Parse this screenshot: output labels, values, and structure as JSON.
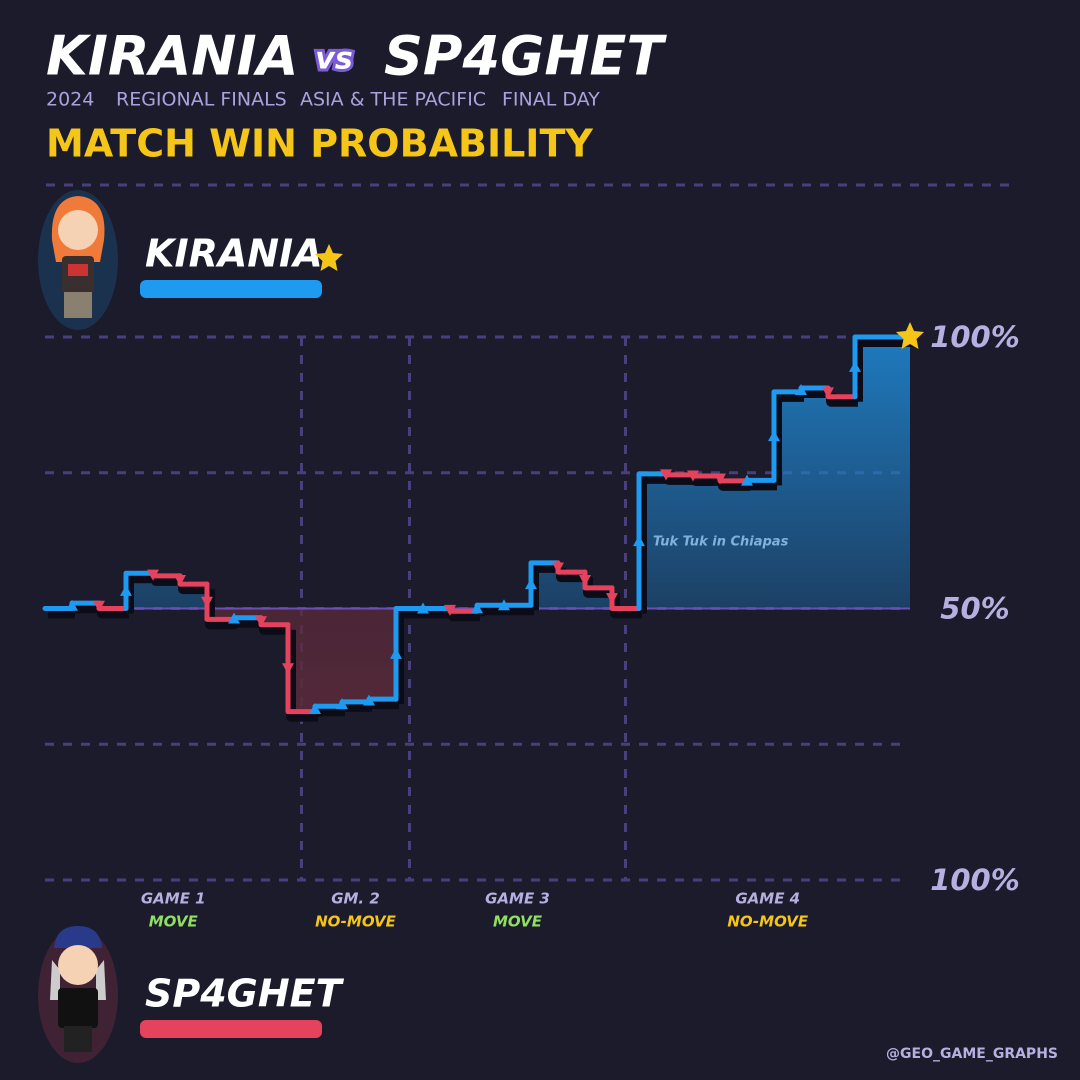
{
  "header": {
    "team_a": "KIRANIA",
    "vs": "vs",
    "team_b": "SP4GHET",
    "subtitle": [
      "2024",
      "REGIONAL FINALS",
      "ASIA & THE PACIFIC",
      "FINAL DAY"
    ]
  },
  "chart_data": {
    "type": "line",
    "title": "MATCH WIN PROBABILITY",
    "players": [
      {
        "name": "KIRANIA",
        "color": "#1e9af0"
      },
      {
        "name": "SP4GHET",
        "color": "#e5435d"
      }
    ],
    "ylim": [
      0,
      100
    ],
    "yticks": [
      {
        "value": 0,
        "label": "100%"
      },
      {
        "value": 25,
        "label": null
      },
      {
        "value": 50,
        "label": "50%"
      },
      {
        "value": 75,
        "label": null
      },
      {
        "value": 100,
        "label": "100%"
      }
    ],
    "grid": true,
    "games": [
      {
        "name": "GAME 1",
        "mode": "MOVE",
        "mode_color": "#8fe060",
        "values": [
          50,
          51,
          50,
          56.5,
          56,
          54.5,
          48,
          48.3,
          47,
          31
        ]
      },
      {
        "name": "GM. 2",
        "mode": "NO-MOVE",
        "mode_color": "#f5c518",
        "values": [
          32,
          32.8,
          33.3,
          50
        ]
      },
      {
        "name": "GAME 3",
        "mode": "MOVE",
        "mode_color": "#8fe060",
        "values": [
          50,
          49.5,
          50.6,
          50.6,
          58.4,
          56.7,
          53.8,
          50
        ]
      },
      {
        "name": "GAME 4",
        "mode": "NO-MOVE",
        "mode_color": "#f5c518",
        "annotation": "Tuk Tuk in Chiapas",
        "values": [
          74.8,
          74.6,
          74.4,
          73.5,
          73.6,
          89.9,
          90.6,
          89,
          100
        ]
      }
    ]
  },
  "credit": "@GEO_GAME_GRAPHS"
}
